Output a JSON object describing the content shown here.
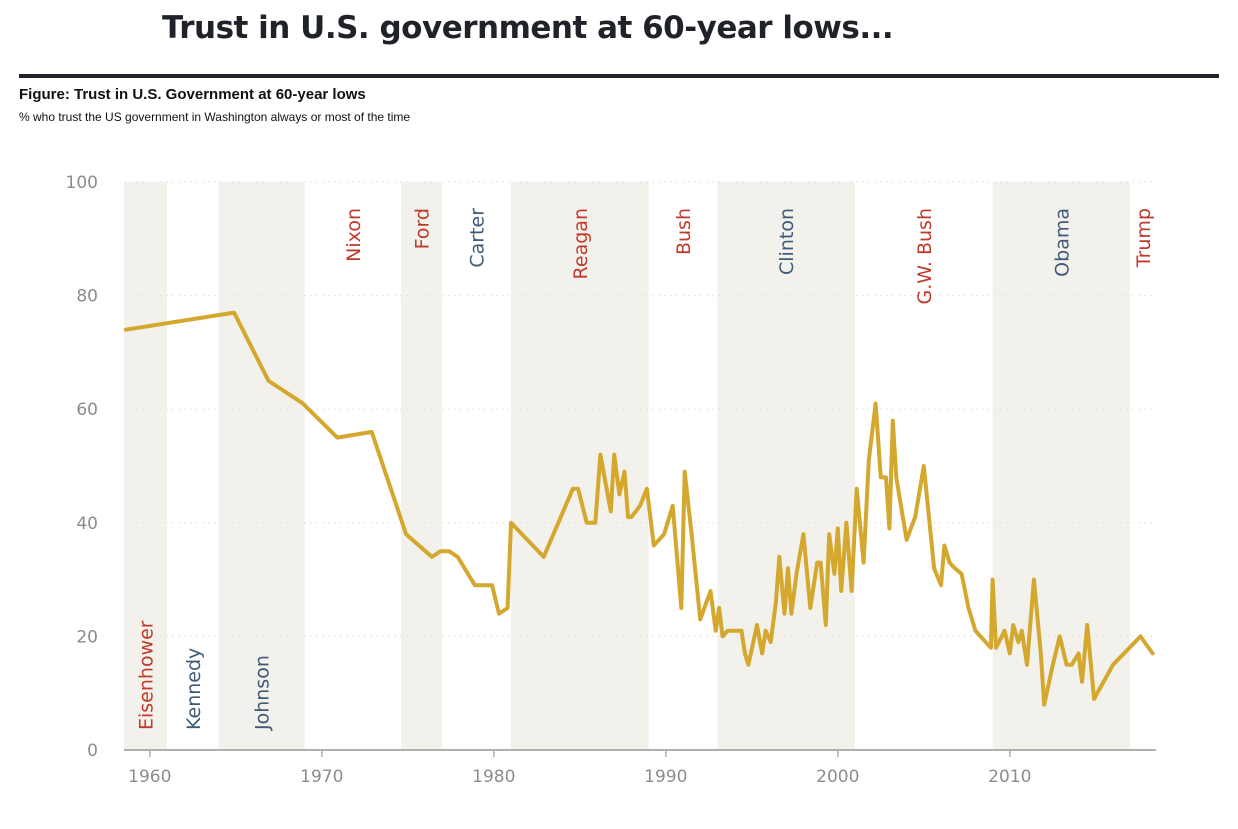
{
  "headline": "Trust in U.S. government at 60-year lows...",
  "figure_title": "Figure: Trust in U.S. Government at 60-year lows",
  "figure_subtitle": "% who trust the US government in Washington always or most of the time",
  "colors": {
    "line": "#d4a72f",
    "shade": "#f3f1ec",
    "republican": "#c0392b",
    "democrat": "#3f5b77",
    "axis": "#b0b0b0",
    "grid": "#e6e6e6"
  },
  "chart_data": {
    "type": "line",
    "title": "Figure: Trust in U.S. Government at 60-year lows",
    "subtitle": "% who trust the US government in Washington always or most of the time",
    "xlim": [
      1958.5,
      2018.5
    ],
    "ylim": [
      0,
      100
    ],
    "x_ticks": [
      1960,
      1970,
      1980,
      1990,
      2000,
      2010
    ],
    "y_ticks": [
      0,
      20,
      40,
      60,
      80,
      100
    ],
    "grid": "horizontal dotted",
    "presidents": [
      {
        "name": "Eisenhower",
        "start": 1958.5,
        "end": 1961,
        "party": "R",
        "shaded": true,
        "label_pos": "bottom"
      },
      {
        "name": "Kennedy",
        "start": 1961,
        "end": 1964,
        "party": "D",
        "shaded": false,
        "label_pos": "bottom"
      },
      {
        "name": "Johnson",
        "start": 1964,
        "end": 1969,
        "party": "D",
        "shaded": true,
        "label_pos": "bottom"
      },
      {
        "name": "Nixon",
        "start": 1969,
        "end": 1974.6,
        "party": "R",
        "shaded": false,
        "label_pos": "top"
      },
      {
        "name": "Ford",
        "start": 1974.6,
        "end": 1977,
        "party": "R",
        "shaded": true,
        "label_pos": "top"
      },
      {
        "name": "Carter",
        "start": 1977,
        "end": 1981,
        "party": "D",
        "shaded": false,
        "label_pos": "top"
      },
      {
        "name": "Reagan",
        "start": 1981,
        "end": 1989,
        "party": "R",
        "shaded": true,
        "label_pos": "top"
      },
      {
        "name": "Bush",
        "start": 1989,
        "end": 1993,
        "party": "R",
        "shaded": false,
        "label_pos": "top"
      },
      {
        "name": "Clinton",
        "start": 1993,
        "end": 2001,
        "party": "D",
        "shaded": true,
        "label_pos": "top"
      },
      {
        "name": "G.W. Bush",
        "start": 2001,
        "end": 2009,
        "party": "R",
        "shaded": false,
        "label_pos": "top"
      },
      {
        "name": "Obama",
        "start": 2009,
        "end": 2017,
        "party": "D",
        "shaded": true,
        "label_pos": "top"
      },
      {
        "name": "Trump",
        "start": 2017,
        "end": 2018.5,
        "party": "R",
        "shaded": false,
        "label_pos": "top"
      }
    ],
    "series": [
      {
        "x": [
          1958.6,
          1964.9,
          1966.9,
          1968.9,
          1970.9,
          1972.9,
          1974.9,
          1976.4,
          1976.9,
          1977.4,
          1977.9,
          1978.9,
          1979.9,
          1980.3,
          1980.8,
          1981.0,
          1982.9,
          1984.6,
          1984.9,
          1985.4,
          1985.9,
          1986.2,
          1986.8,
          1987.0,
          1987.3,
          1987.6,
          1987.8,
          1988.0,
          1988.5,
          1988.9,
          1989.3,
          1989.9,
          1990.4,
          1990.9,
          1991.1,
          1991.5,
          1992.0,
          1992.6,
          1992.9,
          1993.1,
          1993.3,
          1993.6,
          1994.4,
          1994.6,
          1994.8,
          1995.3,
          1995.6,
          1995.8,
          1996.1,
          1996.4,
          1996.6,
          1996.9,
          1997.1,
          1997.3,
          1997.6,
          1998.0,
          1998.4,
          1998.8,
          1999.0,
          1999.3,
          1999.5,
          1999.8,
          2000.0,
          2000.2,
          2000.5,
          2000.8,
          2001.1,
          2001.5,
          2001.8,
          2002.2,
          2002.5,
          2002.8,
          2003.0,
          2003.2,
          2003.4,
          2004.0,
          2004.5,
          2005.0,
          2005.6,
          2006.0,
          2006.2,
          2006.5,
          2006.8,
          2007.2,
          2007.6,
          2008.0,
          2008.9,
          2009.0,
          2009.2,
          2009.7,
          2010.0,
          2010.2,
          2010.5,
          2010.7,
          2011.0,
          2011.4,
          2011.8,
          2012.0,
          2012.5,
          2012.9,
          2013.3,
          2013.6,
          2014.0,
          2014.2,
          2014.5,
          2014.9,
          2016.0,
          2017.6,
          2018.3
        ],
        "y": [
          74,
          77,
          65,
          61,
          55,
          56,
          38,
          34,
          35,
          35,
          34,
          29,
          29,
          24,
          25,
          40,
          34,
          46,
          46,
          40,
          40,
          52,
          42,
          52,
          45,
          49,
          41,
          41,
          43,
          46,
          36,
          38,
          43,
          25,
          49,
          38,
          23,
          28,
          21,
          25,
          20,
          21,
          21,
          17,
          15,
          22,
          17,
          21,
          19,
          26,
          34,
          24,
          32,
          24,
          31,
          38,
          25,
          33,
          33,
          22,
          38,
          31,
          39,
          28,
          40,
          28,
          46,
          33,
          51,
          61,
          48,
          48,
          39,
          58,
          48,
          37,
          41,
          50,
          32,
          29,
          36,
          33,
          32,
          31,
          25,
          21,
          18,
          30,
          18,
          21,
          17,
          22,
          19,
          21,
          15,
          30,
          17,
          8,
          15,
          20,
          15,
          15,
          17,
          12,
          22,
          9,
          15,
          20,
          17
        ]
      }
    ]
  }
}
